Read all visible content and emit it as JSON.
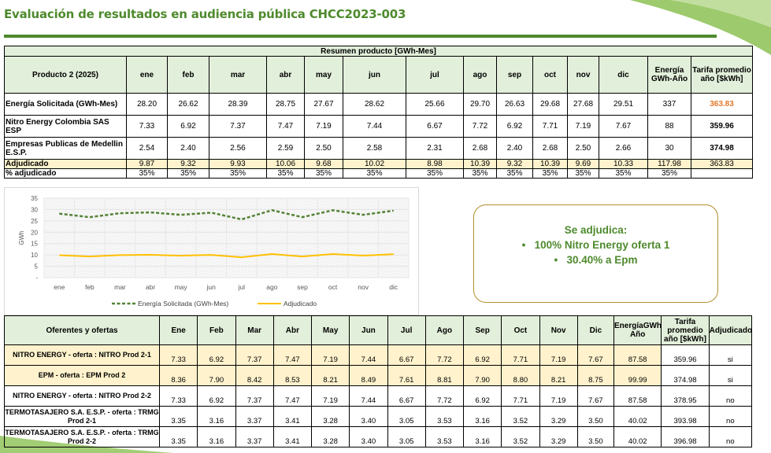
{
  "title": "Evaluación de resultados en audiencia pública CHCC2023-003",
  "summary": {
    "heading": "Resumen producto [GWh-Mes]",
    "product": "Producto 2 (2025)",
    "months": [
      "ene",
      "feb",
      "mar",
      "abr",
      "may",
      "jun",
      "jul",
      "ago",
      "sep",
      "oct",
      "nov",
      "dic"
    ],
    "energy_col": "Energía GWh-Año",
    "tariff_col": "Tarifa promedio año [$kWh]",
    "rows": [
      {
        "label": "Energía Solicitada (GWh-Mes)",
        "values": [
          "28.20",
          "26.62",
          "28.39",
          "28.75",
          "27.67",
          "28.62",
          "25.66",
          "29.70",
          "26.63",
          "29.68",
          "27.68",
          "29.51"
        ],
        "energy": "337",
        "tariff": "363.83"
      },
      {
        "label": "Nitro Energy Colombia SAS ESP",
        "values": [
          "7.33",
          "6.92",
          "7.37",
          "7.47",
          "7.19",
          "7.44",
          "6.67",
          "7.72",
          "6.92",
          "7.71",
          "7.19",
          "7.67"
        ],
        "energy": "88",
        "tariff": "359.96"
      },
      {
        "label": "Empresas Publicas de Medellin E.S.P.",
        "values": [
          "2.54",
          "2.40",
          "2.56",
          "2.59",
          "2.50",
          "2.58",
          "2.31",
          "2.68",
          "2.40",
          "2.68",
          "2.50",
          "2.66"
        ],
        "energy": "30",
        "tariff": "374.98"
      },
      {
        "label": "Adjudicado",
        "values": [
          "9.87",
          "9.32",
          "9.93",
          "10.06",
          "9.68",
          "10.02",
          "8.98",
          "10.39",
          "9.32",
          "10.39",
          "9.69",
          "10.33"
        ],
        "energy": "117.98",
        "tariff": "363.83"
      },
      {
        "label": "% adjudicado",
        "values": [
          "35%",
          "35%",
          "35%",
          "35%",
          "35%",
          "35%",
          "35%",
          "35%",
          "35%",
          "35%",
          "35%",
          "35%"
        ],
        "energy": "35%",
        "tariff": ""
      }
    ]
  },
  "chart_data": {
    "type": "line",
    "categories": [
      "ene",
      "feb",
      "mar",
      "abr",
      "may",
      "jun",
      "jul",
      "ago",
      "sep",
      "oct",
      "nov",
      "dic"
    ],
    "series": [
      {
        "name": "Energía Solicitada (GWh-Mes)",
        "values": [
          28.2,
          26.62,
          28.39,
          28.75,
          27.67,
          28.62,
          25.66,
          29.7,
          26.63,
          29.68,
          27.68,
          29.51
        ],
        "color": "#548235",
        "style": "dashed"
      },
      {
        "name": "Adjudicado",
        "values": [
          9.87,
          9.32,
          9.93,
          10.06,
          9.68,
          10.02,
          8.98,
          10.39,
          9.32,
          10.39,
          9.69,
          10.33
        ],
        "color": "#ffc000",
        "style": "solid"
      }
    ],
    "ylabel": "GWh",
    "yticks": [
      "35",
      "30",
      "25",
      "20",
      "15",
      "10",
      "5",
      "-"
    ],
    "ylim": [
      0,
      35
    ],
    "grid": true,
    "legend": "bottom"
  },
  "callout": {
    "title": "Se adjudica:",
    "items": [
      "100% Nitro Energy oferta 1",
      "30.40% a Epm"
    ]
  },
  "offers": {
    "header_label": "Oferentes y ofertas",
    "months": [
      "Ene",
      "Feb",
      "Mar",
      "Abr",
      "May",
      "Jun",
      "Jul",
      "Ago",
      "Sep",
      "Oct",
      "Nov",
      "Dic"
    ],
    "energy_col": "EnergíaGWh-Año",
    "tariff_col": "Tarifa promedio año [$kWh]",
    "awarded_col": "Adjudicado",
    "rows": [
      {
        "label": "NITRO ENERGY - oferta : NITRO Prod 2-1",
        "values": [
          "7.33",
          "6.92",
          "7.37",
          "7.47",
          "7.19",
          "7.44",
          "6.67",
          "7.72",
          "6.92",
          "7.71",
          "7.19",
          "7.67"
        ],
        "energy": "87.58",
        "tariff": "359.96",
        "awarded": "si"
      },
      {
        "label": "EPM - oferta : EPM Prod 2",
        "values": [
          "8.36",
          "7.90",
          "8.42",
          "8.53",
          "8.21",
          "8.49",
          "7.61",
          "8.81",
          "7.90",
          "8.80",
          "8.21",
          "8.75"
        ],
        "energy": "99.99",
        "tariff": "374.98",
        "awarded": "si"
      },
      {
        "label": "NITRO ENERGY - oferta : NITRO Prod 2-2",
        "values": [
          "7.33",
          "6.92",
          "7.37",
          "7.47",
          "7.19",
          "7.44",
          "6.67",
          "7.72",
          "6.92",
          "7.71",
          "7.19",
          "7.67"
        ],
        "energy": "87.58",
        "tariff": "378.95",
        "awarded": "no"
      },
      {
        "label": "TERMOTASAJERO S.A. E.S.P. - oferta : TRMG Prod 2-1",
        "values": [
          "3.35",
          "3.16",
          "3.37",
          "3.41",
          "3.28",
          "3.40",
          "3.05",
          "3.53",
          "3.16",
          "3.52",
          "3.29",
          "3.50"
        ],
        "energy": "40.02",
        "tariff": "393.98",
        "awarded": "no"
      },
      {
        "label": "TERMOTASAJERO S.A. E.S.P. - oferta : TRMG Prod 2-2",
        "values": [
          "3.35",
          "3.16",
          "3.37",
          "3.41",
          "3.28",
          "3.40",
          "3.05",
          "3.53",
          "3.16",
          "3.52",
          "3.29",
          "3.50"
        ],
        "energy": "40.02",
        "tariff": "396.98",
        "awarded": "no"
      }
    ]
  },
  "colors": {
    "brand_green": "#4e8a2d",
    "header_fill": "#e2efda",
    "highlight_fill": "#fff2cc",
    "tariff_orange": "#e4792a",
    "callout_border": "#b38e2c"
  }
}
